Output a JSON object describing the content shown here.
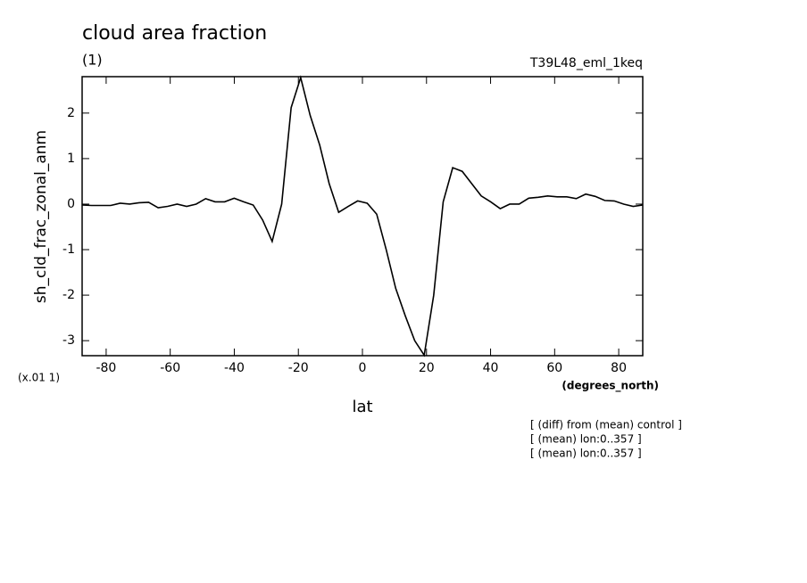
{
  "chart_data": {
    "type": "line",
    "title": "cloud area fraction",
    "subtitle": "(1)",
    "run_label": "T39L48_eml_1keq",
    "ylabel": "sh_cld_frac_zonal_anm",
    "scale_label": "(x.01 1)",
    "xlabel": "lat",
    "xunits": "(degrees_north)",
    "notes": [
      "[ (diff) from (mean) control ]",
      "[ (mean) lon:0..357 ]",
      "[ (mean) lon:0..357 ]"
    ],
    "x": [
      -87.5,
      -84.53,
      -81.57,
      -78.6,
      -75.64,
      -72.67,
      -69.7,
      -66.74,
      -63.77,
      -60.81,
      -57.84,
      -54.87,
      -51.91,
      -48.94,
      -45.98,
      -43.01,
      -40.04,
      -37.08,
      -34.11,
      -31.15,
      -28.18,
      -25.21,
      -22.25,
      -19.28,
      -16.32,
      -13.35,
      -10.38,
      -7.42,
      -4.45,
      -1.49,
      1.49,
      4.45,
      7.42,
      10.38,
      13.35,
      16.32,
      19.28,
      22.25,
      25.21,
      28.18,
      31.15,
      34.11,
      37.08,
      40.04,
      43.01,
      45.98,
      48.94,
      51.91,
      54.87,
      57.84,
      60.81,
      63.77,
      66.74,
      69.7,
      72.67,
      75.64,
      78.6,
      81.57,
      84.53,
      87.5
    ],
    "series": [
      {
        "color": "#000000",
        "values": [
          -0.02,
          -0.03,
          -0.03,
          -0.03,
          0.02,
          0.0,
          0.03,
          0.04,
          -0.08,
          -0.05,
          0.0,
          -0.05,
          0.0,
          0.12,
          0.05,
          0.05,
          0.13,
          0.05,
          -0.02,
          -0.35,
          -0.82,
          0.0,
          2.12,
          2.78,
          1.95,
          1.3,
          0.45,
          -0.18,
          -0.05,
          0.07,
          0.02,
          -0.22,
          -1.0,
          -1.85,
          -2.45,
          -3.0,
          -3.32,
          -2.0,
          0.05,
          0.8,
          0.72,
          0.45,
          0.18,
          0.05,
          -0.1,
          0.0,
          0.0,
          0.13,
          0.15,
          0.18,
          0.16,
          0.16,
          0.12,
          0.22,
          0.17,
          0.08,
          0.07,
          0.0,
          -0.05,
          -0.02
        ]
      }
    ],
    "xlim": [
      -87.5,
      87.5
    ],
    "ylim": [
      -3.33,
      2.8
    ],
    "xticks": [
      -80,
      -60,
      -40,
      -20,
      0,
      20,
      40,
      60,
      80
    ],
    "yticks": [
      -3,
      -2,
      -1,
      0,
      1,
      2
    ],
    "grid": false
  }
}
